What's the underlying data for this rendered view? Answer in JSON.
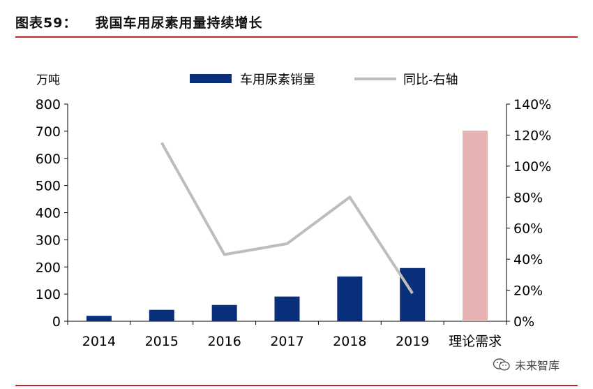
{
  "figure": {
    "number": "图表59：",
    "title": "我国车用尿素用量持续增长"
  },
  "chart_data": {
    "type": "bar",
    "categories": [
      "2014",
      "2015",
      "2016",
      "2017",
      "2018",
      "2019",
      "理论需求"
    ],
    "ylabel_left": "万吨",
    "ylim_left": [
      0,
      800
    ],
    "yticks_left": [
      0,
      100,
      200,
      300,
      400,
      500,
      600,
      700,
      800
    ],
    "ylim_right": [
      0,
      140
    ],
    "yticks_right": [
      "0%",
      "20%",
      "40%",
      "60%",
      "80%",
      "100%",
      "120%",
      "140%"
    ],
    "series": [
      {
        "name": "车用尿素销量",
        "type": "bar",
        "color": "#0a2f7a",
        "values": [
          20,
          42,
          60,
          91,
          165,
          196,
          null
        ]
      },
      {
        "name": "理论需求",
        "type": "bar",
        "color": "#e6b3b3",
        "values": [
          null,
          null,
          null,
          null,
          null,
          null,
          702
        ]
      },
      {
        "name": "同比-右轴",
        "type": "line",
        "color": "#bdbdbd",
        "axis": "right",
        "values": [
          null,
          115,
          43,
          50,
          80,
          18,
          null
        ]
      }
    ],
    "legend": [
      "车用尿素销量",
      "同比-右轴"
    ],
    "legend_position": "top",
    "grid": false
  },
  "watermark": {
    "text": "未来智库",
    "icon": "wechat-icon"
  }
}
